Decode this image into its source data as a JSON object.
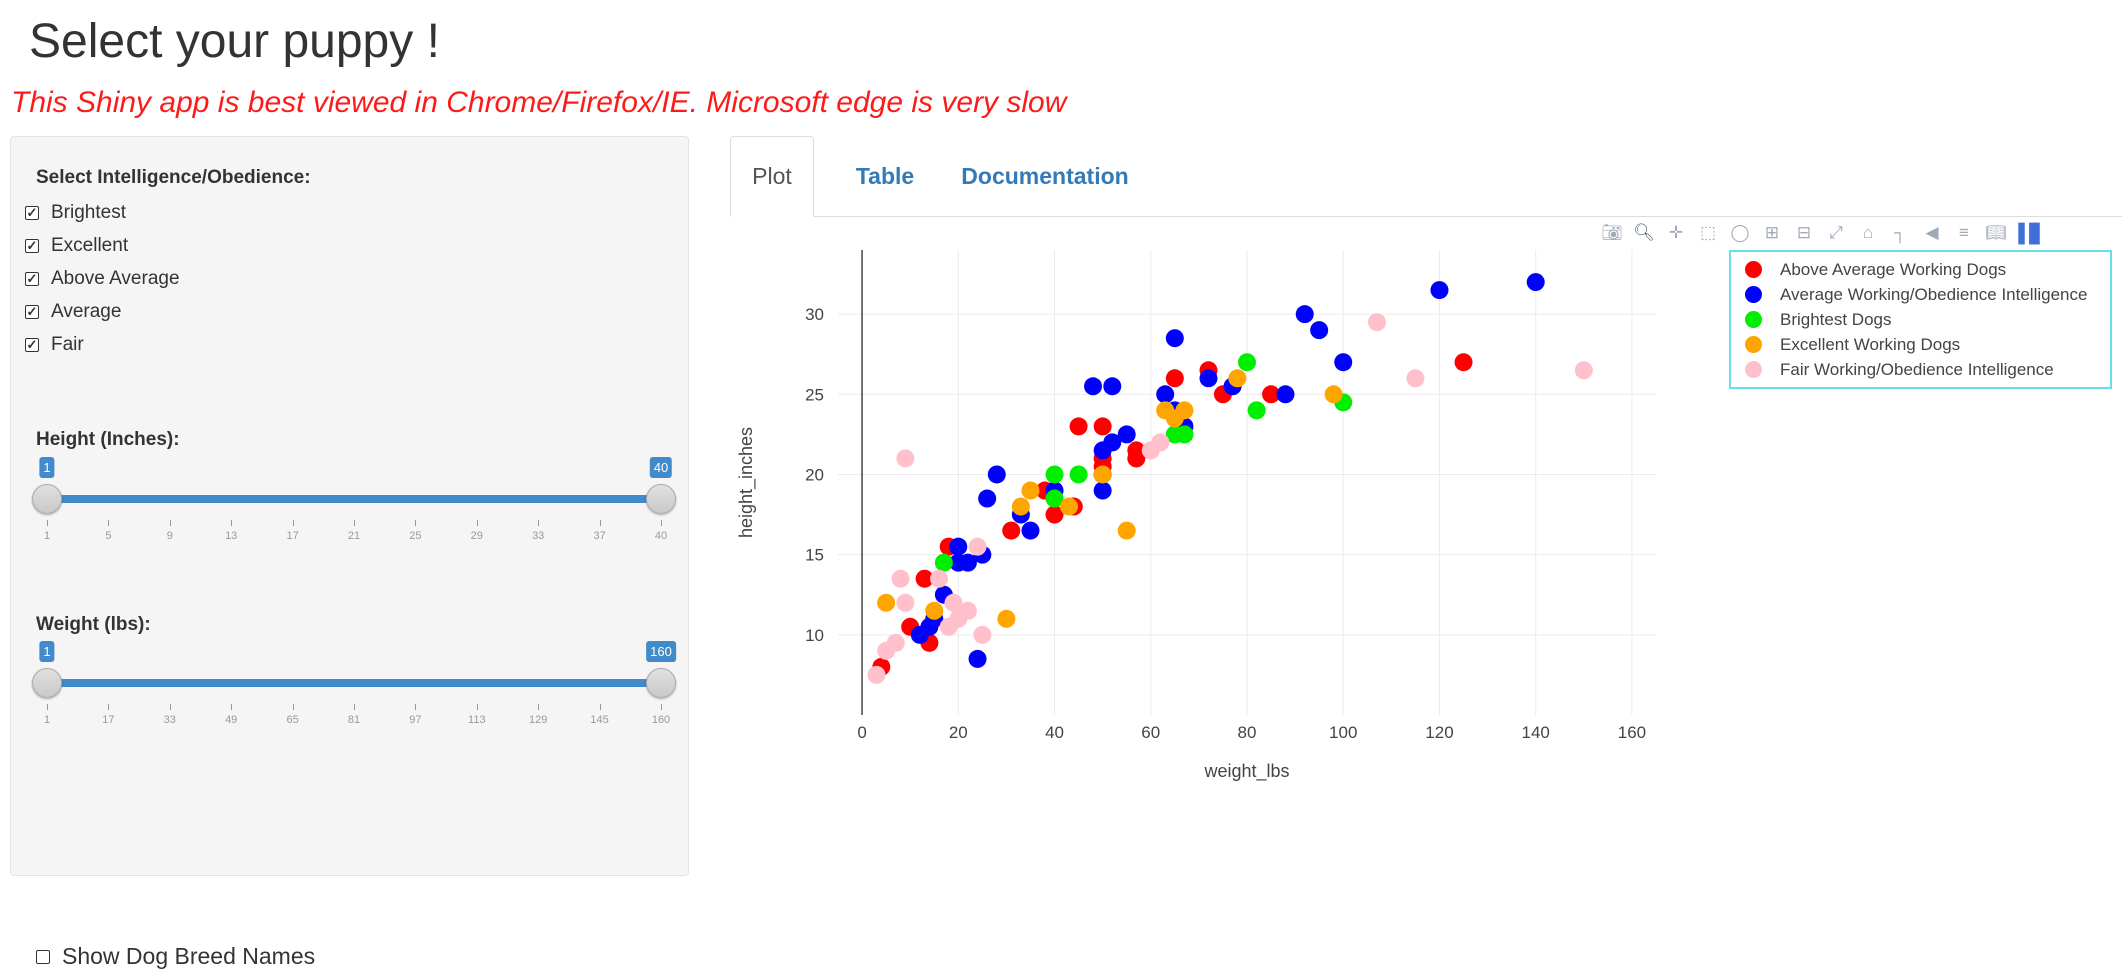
{
  "title": "Select your puppy !",
  "warning": "This Shiny app is best viewed in Chrome/Firefox/IE. Microsoft edge is very slow",
  "sidebar": {
    "intel_label": "Select Intelligence/Obedience:",
    "intel_options": [
      {
        "label": "Brightest",
        "checked": true
      },
      {
        "label": "Excellent",
        "checked": true
      },
      {
        "label": "Above Average",
        "checked": true
      },
      {
        "label": "Average",
        "checked": true
      },
      {
        "label": "Fair",
        "checked": true
      }
    ],
    "height": {
      "label": "Height (Inches):",
      "min": 1,
      "max": 40,
      "from": "1",
      "to": "40",
      "ticks": [
        "1",
        "5",
        "9",
        "13",
        "17",
        "21",
        "25",
        "29",
        "33",
        "37",
        "40"
      ]
    },
    "weight": {
      "label": "Weight (lbs):",
      "min": 1,
      "max": 160,
      "from": "1",
      "to": "160",
      "ticks": [
        "1",
        "17",
        "33",
        "49",
        "65",
        "81",
        "97",
        "113",
        "129",
        "145",
        "160"
      ]
    },
    "show_names_label": "Show Dog Breed Names"
  },
  "tabs": [
    {
      "label": "Plot",
      "active": true
    },
    {
      "label": "Table",
      "active": false
    },
    {
      "label": "Documentation",
      "active": false
    }
  ],
  "modebar": [
    "camera-icon",
    "zoom-icon",
    "pan-icon",
    "box-select-icon",
    "lasso-icon",
    "zoom-in-icon",
    "zoom-out-icon",
    "autoscale-icon",
    "reset-axes-icon",
    "spike-lines-icon",
    "hover-closest-icon",
    "hover-compare-icon",
    "docs-icon",
    "plotly-logo"
  ],
  "chart_data": {
    "type": "scatter",
    "xlabel": "weight_lbs",
    "ylabel": "height_inches",
    "xlim": [
      -5,
      165
    ],
    "ylim": [
      5,
      34
    ],
    "xticks": [
      0,
      20,
      40,
      60,
      80,
      100,
      120,
      140,
      160
    ],
    "yticks": [
      10,
      15,
      20,
      25,
      30
    ],
    "grid": true,
    "legend_position": "top-right",
    "series": [
      {
        "name": "Above Average Working Dogs",
        "color": "#ff0000",
        "points": [
          [
            4,
            8
          ],
          [
            10,
            10.5
          ],
          [
            13,
            13.5
          ],
          [
            14,
            9.5
          ],
          [
            18,
            15.5
          ],
          [
            31,
            16.5
          ],
          [
            38,
            19
          ],
          [
            40,
            17.5
          ],
          [
            44,
            18
          ],
          [
            45,
            23
          ],
          [
            50,
            21
          ],
          [
            50,
            23
          ],
          [
            50,
            20.5
          ],
          [
            57,
            21.5
          ],
          [
            57,
            21
          ],
          [
            65,
            26
          ],
          [
            72,
            26.5
          ],
          [
            75,
            25
          ],
          [
            85,
            25
          ],
          [
            125,
            27
          ]
        ]
      },
      {
        "name": "Average Working/Obedience Intelligence",
        "color": "#0000ff",
        "points": [
          [
            12,
            10
          ],
          [
            14,
            10.5
          ],
          [
            15,
            11
          ],
          [
            17,
            12.5
          ],
          [
            20,
            14.5
          ],
          [
            20,
            15.5
          ],
          [
            22,
            14.5
          ],
          [
            24,
            8.5
          ],
          [
            25,
            15
          ],
          [
            26,
            18.5
          ],
          [
            28,
            20
          ],
          [
            33,
            17.5
          ],
          [
            35,
            16.5
          ],
          [
            40,
            19
          ],
          [
            48,
            25.5
          ],
          [
            50,
            19
          ],
          [
            50,
            20
          ],
          [
            50,
            21.5
          ],
          [
            52,
            22
          ],
          [
            52,
            25.5
          ],
          [
            55,
            22.5
          ],
          [
            63,
            25
          ],
          [
            65,
            28.5
          ],
          [
            65,
            24
          ],
          [
            67,
            23
          ],
          [
            72,
            26
          ],
          [
            77,
            25.5
          ],
          [
            88,
            25
          ],
          [
            92,
            30
          ],
          [
            95,
            29
          ],
          [
            100,
            27
          ],
          [
            120,
            31.5
          ],
          [
            140,
            32
          ]
        ]
      },
      {
        "name": "Brightest Dogs",
        "color": "#00ee00",
        "points": [
          [
            17,
            14.5
          ],
          [
            40,
            20
          ],
          [
            40,
            18.5
          ],
          [
            45,
            20
          ],
          [
            65,
            22.5
          ],
          [
            67,
            22.5
          ],
          [
            80,
            27
          ],
          [
            82,
            24
          ],
          [
            100,
            24.5
          ]
        ]
      },
      {
        "name": "Excellent Working Dogs",
        "color": "#ffa500",
        "points": [
          [
            5,
            12
          ],
          [
            15,
            11.5
          ],
          [
            30,
            11
          ],
          [
            33,
            18
          ],
          [
            35,
            19
          ],
          [
            43,
            18
          ],
          [
            50,
            20
          ],
          [
            55,
            16.5
          ],
          [
            63,
            24
          ],
          [
            65,
            23.5
          ],
          [
            67,
            24
          ],
          [
            78,
            26
          ],
          [
            98,
            25
          ]
        ]
      },
      {
        "name": "Fair Working/Obedience Intelligence",
        "color": "#ffc0cb",
        "points": [
          [
            3,
            7.5
          ],
          [
            5,
            9
          ],
          [
            7,
            9.5
          ],
          [
            8,
            13.5
          ],
          [
            9,
            12
          ],
          [
            9,
            21
          ],
          [
            16,
            13.5
          ],
          [
            18,
            10.5
          ],
          [
            19,
            12
          ],
          [
            20,
            11
          ],
          [
            22,
            11.5
          ],
          [
            24,
            15.5
          ],
          [
            25,
            10
          ],
          [
            60,
            21.5
          ],
          [
            62,
            22
          ],
          [
            107,
            29.5
          ],
          [
            115,
            26
          ],
          [
            150,
            26.5
          ]
        ]
      }
    ]
  }
}
